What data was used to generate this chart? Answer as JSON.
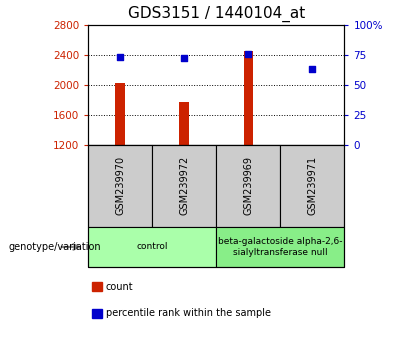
{
  "title": "GDS3151 / 1440104_at",
  "samples": [
    "GSM239970",
    "GSM239972",
    "GSM239969",
    "GSM239971"
  ],
  "counts": [
    2020,
    1780,
    2450,
    1200
  ],
  "percentiles": [
    73,
    72,
    76,
    63
  ],
  "ylim_left": [
    1200,
    2800
  ],
  "ylim_right": [
    0,
    100
  ],
  "yticks_left": [
    1200,
    1600,
    2000,
    2400,
    2800
  ],
  "yticks_right": [
    0,
    25,
    50,
    75,
    100
  ],
  "bar_color": "#cc2200",
  "dot_color": "#0000cc",
  "bar_bottom": 1200,
  "groups": [
    {
      "label": "control",
      "samples": [
        0,
        1
      ],
      "color": "#aaffaa"
    },
    {
      "label": "beta-galactoside alpha-2,6-\nsialyltransferase null",
      "samples": [
        2,
        3
      ],
      "color": "#88ee88"
    }
  ],
  "group_label": "genotype/variation",
  "legend_items": [
    {
      "color": "#cc2200",
      "label": "count"
    },
    {
      "color": "#0000cc",
      "label": "percentile rank within the sample"
    }
  ],
  "title_fontsize": 11,
  "axis_label_color_left": "#cc2200",
  "axis_label_color_right": "#0000cc",
  "sample_box_color": "#cccccc",
  "bar_width": 0.5
}
